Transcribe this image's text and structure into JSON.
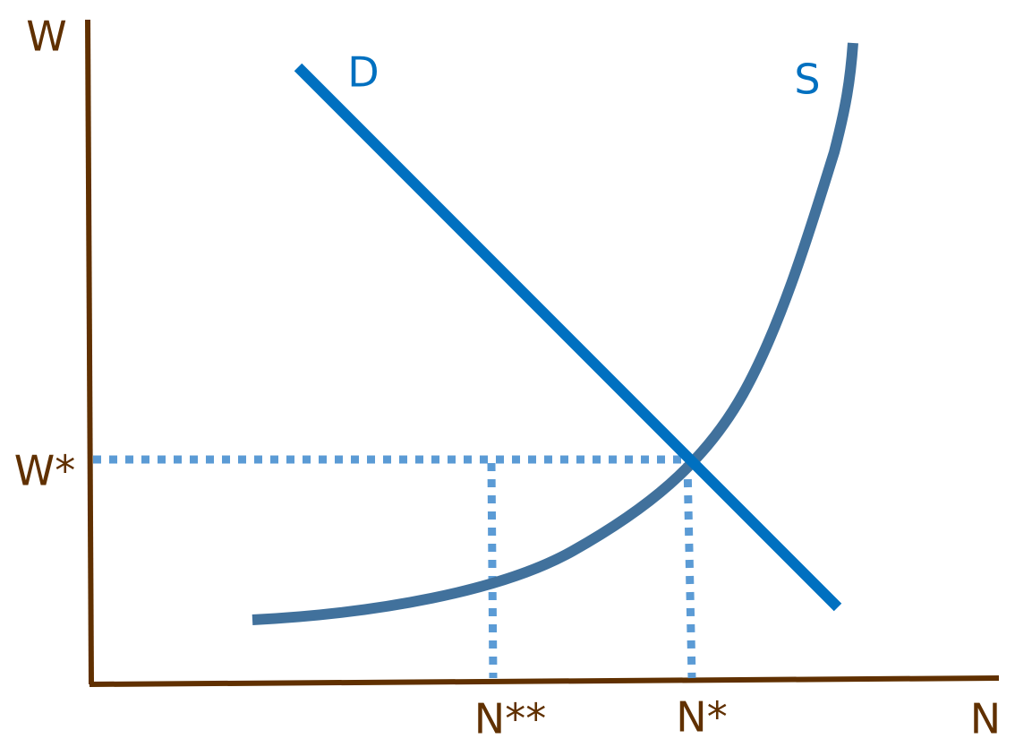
{
  "axes": {
    "y_label": "W",
    "x_label": "N"
  },
  "curves": {
    "demand": "D",
    "supply": "S"
  },
  "markers": {
    "w_star": "W*",
    "n_double_star": "N**",
    "n_star": "N*"
  }
}
